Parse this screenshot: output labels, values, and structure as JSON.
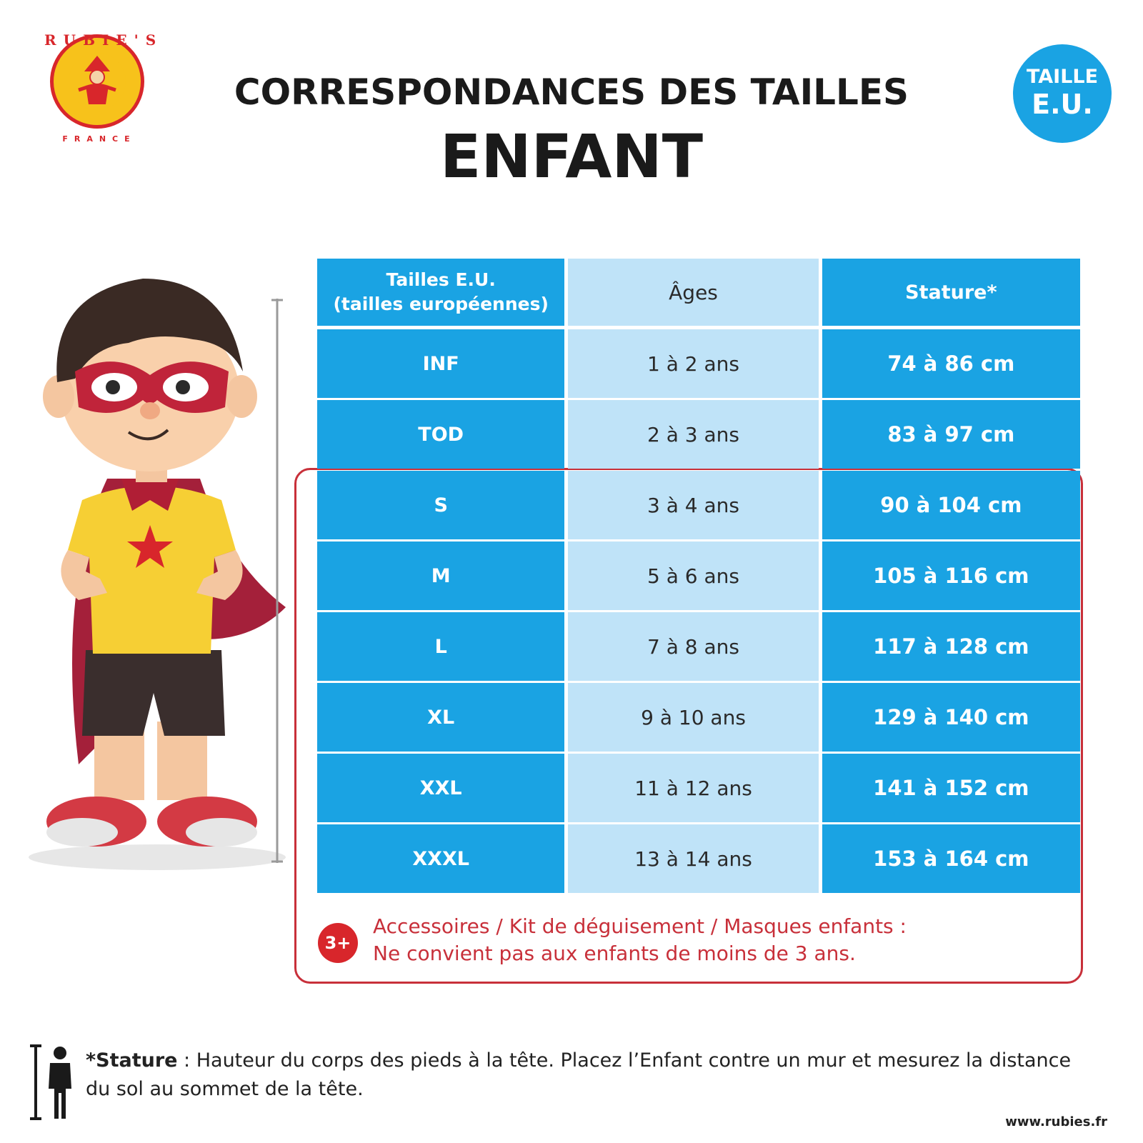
{
  "logo": {
    "word": "RUBIE'S",
    "country": "FRANCE"
  },
  "title": {
    "line1": "CORRESPONDANCES DES TAILLES",
    "line2": "ENFANT"
  },
  "badge": {
    "line1": "TAILLE",
    "line2": "E.U."
  },
  "table": {
    "headers": {
      "size_line1": "Tailles E.U.",
      "size_line2": "(tailles européennes)",
      "age": "Âges",
      "stature": "Stature*"
    },
    "rows": [
      {
        "size": "INF",
        "age": "1 à 2 ans",
        "stature": "74 à 86 cm"
      },
      {
        "size": "TOD",
        "age": "2 à 3 ans",
        "stature": "83 à 97 cm"
      },
      {
        "size": "S",
        "age": "3 à 4 ans",
        "stature": "90 à 104 cm"
      },
      {
        "size": "M",
        "age": "5 à 6 ans",
        "stature": "105 à 116 cm"
      },
      {
        "size": "L",
        "age": "7 à 8 ans",
        "stature": "117 à 128 cm"
      },
      {
        "size": "XL",
        "age": "9 à 10 ans",
        "stature": "129 à 140 cm"
      },
      {
        "size": "XXL",
        "age": "11 à 12 ans",
        "stature": "141 à 152 cm"
      },
      {
        "size": "XXXL",
        "age": "13 à 14 ans",
        "stature": "153 à 164 cm"
      }
    ]
  },
  "warning": {
    "badge": "3+",
    "line1": "Accessoires / Kit de déguisement / Masques enfants :",
    "line2": "Ne convient pas aux enfants de moins de 3 ans."
  },
  "footer": {
    "note_label": "*Stature",
    "note_text": " : Hauteur du corps des pieds à la tête. Placez l’Enfant contre un mur et mesurez la distance du sol au sommet de la tête.",
    "url": "www.rubies.fr"
  },
  "colors": {
    "blue": "#1aa3e3",
    "light_blue": "#bfe3f8",
    "red": "#c8303a"
  }
}
